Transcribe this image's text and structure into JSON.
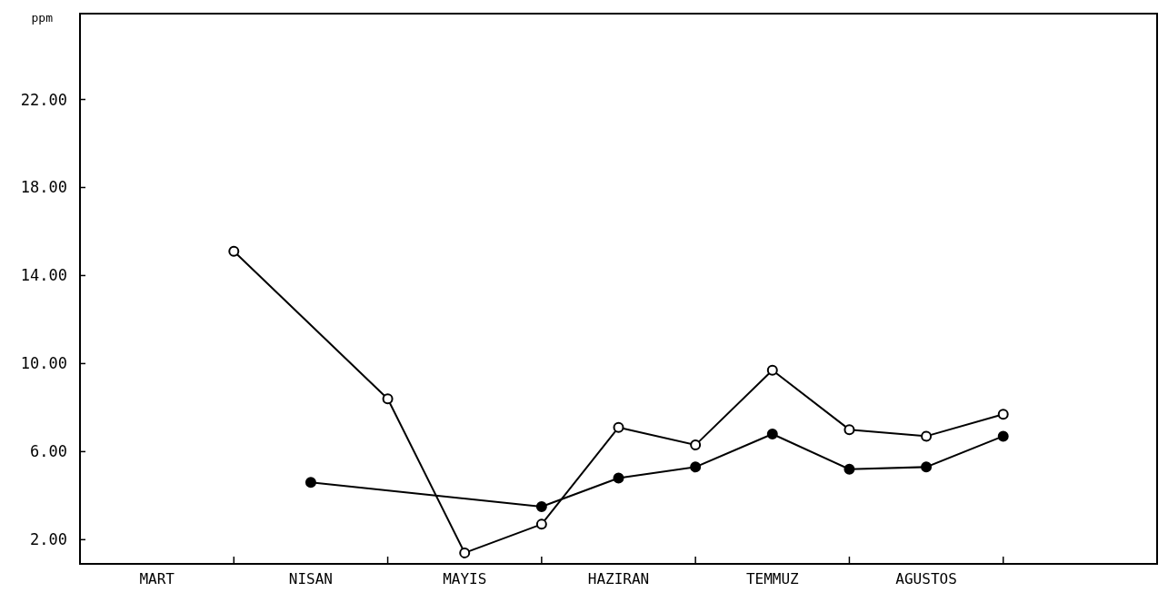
{
  "chart_data": {
    "type": "line",
    "ylabel": "ppm",
    "categories": [
      "MART",
      null,
      "NISAN",
      null,
      "MAYIS",
      null,
      "HAZIRAN",
      null,
      "TEMMUZ",
      null,
      "AGUSTOS",
      null,
      null
    ],
    "series": [
      {
        "color": "#000000",
        "values": [
          null,
          15.1,
          null,
          8.4,
          1.4,
          2.7,
          7.1,
          6.3,
          9.7,
          7.0,
          6.7,
          7.7,
          null
        ]
      },
      {
        "color": "#000000",
        "values": [
          null,
          null,
          4.6,
          null,
          null,
          3.5,
          4.8,
          5.3,
          6.8,
          5.2,
          5.3,
          6.7,
          null
        ]
      }
    ],
    "ylim": [
      0.9,
      25.9
    ],
    "yticks": [
      {
        "value": 2,
        "label": "2.00"
      },
      {
        "value": 6,
        "label": "6.00"
      },
      {
        "value": 10,
        "label": "10.00"
      },
      {
        "value": 14,
        "label": "14.00"
      },
      {
        "value": 18,
        "label": "18.00"
      },
      {
        "value": 22,
        "label": "22.00"
      }
    ],
    "grid": false,
    "marker": "circle",
    "line_style": "solid"
  }
}
